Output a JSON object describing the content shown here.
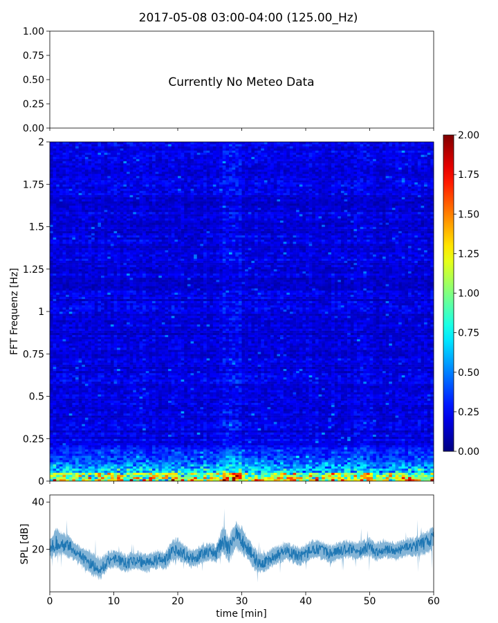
{
  "figure": {
    "title": "2017-05-08 03:00-04:00 (125.00_Hz)"
  },
  "chart_data": [
    {
      "type": "line",
      "panel": "meteo",
      "ylim": [
        0,
        1
      ],
      "yticks": [
        "0.00",
        "0.25",
        "0.50",
        "0.75",
        "1.00"
      ],
      "xlim": [
        0,
        60
      ],
      "annotation": "Currently No Meteo Data",
      "series": []
    },
    {
      "type": "heatmap",
      "panel": "spectrogram",
      "ylabel": "FFT Frequenz [Hz]",
      "xlim": [
        0,
        60
      ],
      "ylim": [
        0,
        2
      ],
      "yticks": [
        "0",
        "0.25",
        "0.5",
        "0.75",
        "1",
        "1.25",
        "1.5",
        "1.75",
        "2"
      ],
      "colormap": "jet",
      "colorbar": {
        "range": [
          0,
          2
        ],
        "ticks": [
          "0.00",
          "0.25",
          "0.50",
          "0.75",
          "1.00",
          "1.25",
          "1.50",
          "1.75",
          "2.00"
        ]
      },
      "columns": 120,
      "rows": 160,
      "profile": {
        "base_level": 0.18,
        "low_freq_band_hz": 0.3,
        "low_freq_peak": 1.0,
        "bright_time_min": [
          27,
          30
        ]
      }
    },
    {
      "type": "line",
      "panel": "spl",
      "ylabel": "SPL [dB]",
      "xlabel": "time [min]",
      "xlim": [
        0,
        60
      ],
      "ylim": [
        2,
        43
      ],
      "yticks": [
        "20",
        "40"
      ],
      "xticks": [
        "0",
        "10",
        "20",
        "30",
        "40",
        "50",
        "60"
      ],
      "color": "#1f77b4",
      "series": [
        {
          "x": [
            0,
            1,
            2,
            3,
            4,
            5,
            6,
            7,
            8,
            9,
            10,
            11,
            12,
            13,
            14,
            15,
            16,
            17,
            18,
            19,
            20,
            21,
            22,
            23,
            24,
            25,
            26,
            27,
            28,
            29,
            30,
            31,
            32,
            33,
            34,
            35,
            36,
            37,
            38,
            39,
            40,
            41,
            42,
            43,
            44,
            45,
            46,
            47,
            48,
            49,
            50,
            51,
            52,
            53,
            54,
            55,
            56,
            57,
            58,
            59,
            60
          ],
          "y": [
            20,
            23,
            22,
            21,
            19,
            17,
            15,
            13,
            12,
            15,
            16,
            15,
            14,
            15,
            15,
            14,
            15,
            16,
            15,
            19,
            20,
            18,
            16,
            17,
            18,
            19,
            18,
            24,
            20,
            26,
            24,
            20,
            16,
            14,
            15,
            17,
            18,
            19,
            18,
            17,
            18,
            20,
            20,
            19,
            18,
            19,
            20,
            20,
            19,
            20,
            21,
            19,
            20,
            20,
            19,
            20,
            21,
            21,
            22,
            23,
            25
          ],
          "band": [
            4,
            6,
            5,
            5,
            4,
            4,
            5,
            5,
            5,
            4,
            4,
            4,
            4,
            4,
            4,
            4,
            4,
            4,
            4,
            5,
            5,
            4,
            4,
            4,
            4,
            4,
            4,
            6,
            6,
            6,
            6,
            5,
            5,
            4,
            4,
            4,
            4,
            4,
            4,
            4,
            4,
            4,
            4,
            4,
            4,
            4,
            4,
            4,
            4,
            4,
            4,
            4,
            4,
            4,
            4,
            4,
            4,
            4,
            5,
            5,
            5
          ]
        }
      ]
    }
  ]
}
